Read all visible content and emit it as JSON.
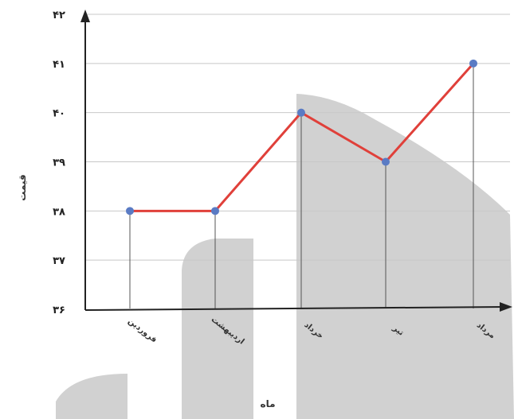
{
  "chart_data": {
    "type": "line",
    "categories": [
      "فروردین",
      "اردیبهشت",
      "خرداد",
      "تیر",
      "مرداد"
    ],
    "values": [
      38,
      38,
      40,
      39,
      41
    ],
    "ylim": [
      36,
      42
    ],
    "yticks": [
      "۳۶",
      "۳۷",
      "۳۸",
      "۳۹",
      "۴۰",
      "۴۱",
      "۴۲"
    ],
    "xlabel": "ماه",
    "ylabel": "قیمت",
    "grid": true,
    "colors": {
      "line": "#e0403a",
      "marker": "#5a7bc4",
      "grid": "#c8c8c8",
      "axis": "#222222",
      "watermark": "#c9c9c9"
    }
  }
}
